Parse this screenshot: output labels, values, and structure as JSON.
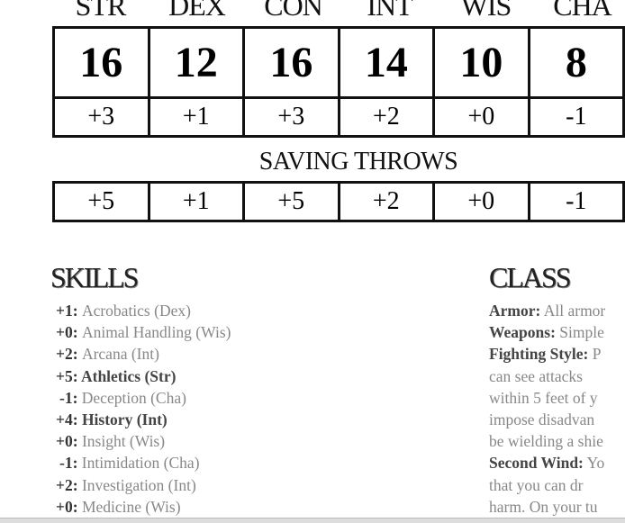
{
  "abilities": [
    {
      "name": "STR",
      "score": "16",
      "mod": "+3",
      "save": "+5"
    },
    {
      "name": "DEX",
      "score": "12",
      "mod": "+1",
      "save": "+1"
    },
    {
      "name": "CON",
      "score": "16",
      "mod": "+3",
      "save": "+5"
    },
    {
      "name": "INT",
      "score": "14",
      "mod": "+2",
      "save": "+2"
    },
    {
      "name": "WIS",
      "score": "10",
      "mod": "+0",
      "save": "+0"
    },
    {
      "name": "CHA",
      "score": "8",
      "mod": "-1",
      "save": "-1"
    }
  ],
  "saving_throws_title": "SAVING THROWS",
  "skills": {
    "title": "SKILLS",
    "items": [
      {
        "mod": "+1",
        "name": "Acrobatics (Dex)",
        "proficient": false
      },
      {
        "mod": "+0",
        "name": "Animal Handling (Wis)",
        "proficient": false
      },
      {
        "mod": "+2",
        "name": "Arcana (Int)",
        "proficient": false
      },
      {
        "mod": "+5",
        "name": "Athletics (Str)",
        "proficient": true
      },
      {
        "mod": "-1",
        "name": "Deception (Cha)",
        "proficient": false
      },
      {
        "mod": "+4",
        "name": "History (Int)",
        "proficient": true
      },
      {
        "mod": "+0",
        "name": "Insight (Wis)",
        "proficient": false
      },
      {
        "mod": "-1",
        "name": "Intimidation (Cha)",
        "proficient": false
      },
      {
        "mod": "+2",
        "name": "Investigation (Int)",
        "proficient": false
      },
      {
        "mod": "+0",
        "name": "Medicine (Wis)",
        "proficient": false
      }
    ]
  },
  "class": {
    "title": "CLASS",
    "lines": [
      {
        "bold": "Armor:",
        "text": " All armor"
      },
      {
        "bold": "Weapons:",
        "text": " Simple"
      },
      {
        "bold": "Fighting Style:",
        "text": " P"
      },
      {
        "bold": "",
        "text": "can see attacks"
      },
      {
        "bold": "",
        "text": "within 5 feet of y"
      },
      {
        "bold": "",
        "text": "impose disadvan"
      },
      {
        "bold": "",
        "text": "be wielding a shie"
      },
      {
        "bold": "Second Wind:",
        "text": " Yo"
      },
      {
        "bold": "",
        "text": "that you can dr"
      },
      {
        "bold": "",
        "text": "harm. On your tu"
      }
    ]
  }
}
